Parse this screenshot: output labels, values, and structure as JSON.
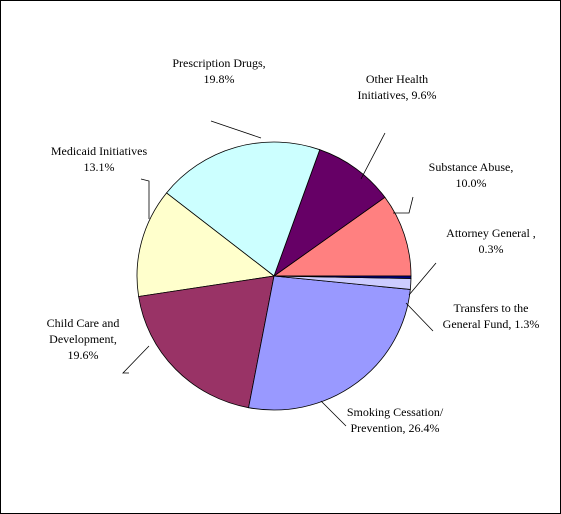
{
  "chart_data": {
    "type": "pie",
    "start_angle_deg": 0,
    "direction": "counterclockwise",
    "slices": [
      {
        "label_lines": [
          "Substance Abuse,",
          "10.0%"
        ],
        "value": 10.0,
        "color": "#FF8080"
      },
      {
        "label_lines": [
          "Other Health",
          "Initiatives, 9.6%"
        ],
        "value": 9.6,
        "color": "#660066"
      },
      {
        "label_lines": [
          "Prescription Drugs,",
          "19.8%"
        ],
        "value": 19.8,
        "color": "#CCFFFF"
      },
      {
        "label_lines": [
          "Medicaid Initiatives",
          "13.1%"
        ],
        "value": 13.1,
        "color": "#FFFFCC"
      },
      {
        "label_lines": [
          "Child Care and",
          "Development,",
          "19.6%"
        ],
        "value": 19.6,
        "color": "#993366"
      },
      {
        "label_lines": [
          "Smoking Cessation/",
          "Prevention, 26.4%"
        ],
        "value": 26.4,
        "color": "#9999FF"
      },
      {
        "label_lines": [
          "Transfers to the",
          "General Fund, 1.3%"
        ],
        "value": 1.3,
        "color": "#CCCCFF"
      },
      {
        "label_lines": [
          "Attorney General ,",
          "0.3%"
        ],
        "value": 0.3,
        "color": "#000080"
      }
    ],
    "legend": "none",
    "title": ""
  }
}
